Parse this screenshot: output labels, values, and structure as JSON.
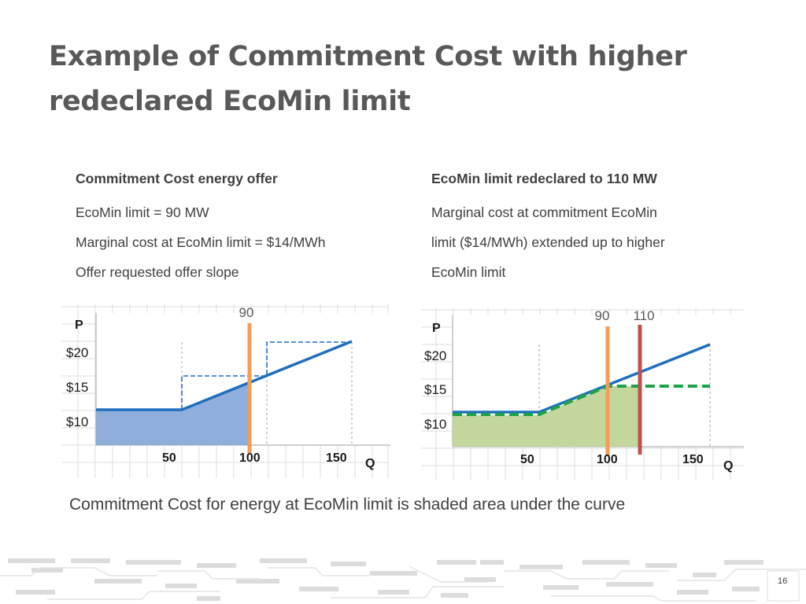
{
  "slide": {
    "title_line1": "Example of Commitment Cost with higher",
    "title_line2": "redeclared EcoMin limit",
    "caption": "Commitment Cost for energy at EcoMin limit is shaded area under the curve",
    "page_number": "16"
  },
  "left_block": {
    "heading": "Commitment Cost energy offer",
    "lines": [
      "EcoMin limit = 90 MW",
      "Marginal cost at EcoMin limit = $14/MWh",
      "Offer requested offer slope"
    ]
  },
  "right_block": {
    "heading": "EcoMin limit redeclared to 110 MW",
    "lines": [
      "Marginal cost at commitment EcoMin",
      "limit ($14/MWh) extended up to higher",
      "EcoMin limit"
    ]
  },
  "charts": {
    "left": {
      "y_axis_label": "P",
      "x_axis_label": "Q",
      "y_ticks": [
        "$20",
        "$15",
        "$10"
      ],
      "x_ticks": [
        "50",
        "100",
        "150"
      ],
      "markers": [
        "90"
      ]
    },
    "right": {
      "y_axis_label": "P",
      "x_axis_label": "Q",
      "y_ticks": [
        "$20",
        "$15",
        "$10"
      ],
      "x_ticks": [
        "50",
        "100",
        "150"
      ],
      "markers": [
        "90",
        "110"
      ]
    }
  },
  "colors": {
    "offer_curve": "#1f6fbf",
    "shaded_area_left": "#8faedb",
    "shaded_area_right": "#c3d69b",
    "ecomin_90_marker": "#f59d56",
    "ecomin_110_marker": "#c0504d",
    "extended_cost_line": "#1aa34a",
    "step_curve": "#1f6fbf"
  }
}
